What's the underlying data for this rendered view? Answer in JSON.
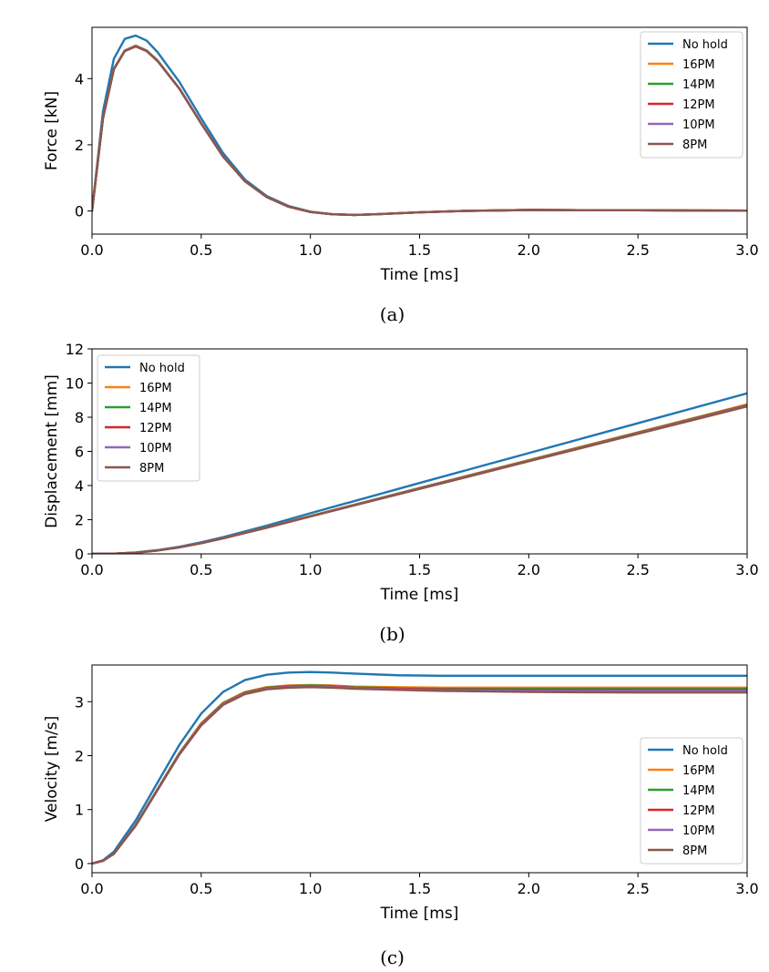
{
  "chart_data": [
    {
      "type": "line",
      "caption": "(a)",
      "xlabel": "Time [ms]",
      "ylabel": "Force [kN]",
      "xlim": [
        0,
        3.0
      ],
      "ylim": [
        -0.7,
        5.55
      ],
      "xticks": [
        "0.0",
        "0.5",
        "1.0",
        "1.5",
        "2.0",
        "2.5",
        "3.0"
      ],
      "yticks": [
        "0",
        "2",
        "4"
      ],
      "legend_position": "upper-right",
      "x": [
        0,
        0.05,
        0.1,
        0.15,
        0.2,
        0.25,
        0.3,
        0.4,
        0.5,
        0.6,
        0.7,
        0.8,
        0.9,
        1.0,
        1.1,
        1.2,
        1.3,
        1.5,
        1.7,
        2.0,
        2.5,
        3.0
      ],
      "series": [
        {
          "name": "No hold",
          "color": "#1f77b4",
          "values": [
            0,
            3.0,
            4.6,
            5.2,
            5.3,
            5.15,
            4.8,
            3.9,
            2.8,
            1.75,
            0.95,
            0.45,
            0.15,
            -0.02,
            -0.1,
            -0.12,
            -0.1,
            -0.04,
            0.0,
            0.03,
            0.02,
            0.01
          ]
        },
        {
          "name": "16PM",
          "color": "#ff7f0e",
          "values": [
            0,
            2.8,
            4.3,
            4.85,
            5.0,
            4.85,
            4.55,
            3.7,
            2.65,
            1.65,
            0.9,
            0.42,
            0.13,
            -0.03,
            -0.1,
            -0.12,
            -0.1,
            -0.04,
            0.0,
            0.03,
            0.02,
            0.01
          ]
        },
        {
          "name": "14PM",
          "color": "#2ca02c",
          "values": [
            0,
            2.8,
            4.3,
            4.85,
            4.99,
            4.85,
            4.55,
            3.7,
            2.65,
            1.65,
            0.9,
            0.42,
            0.13,
            -0.03,
            -0.1,
            -0.12,
            -0.1,
            -0.04,
            0.0,
            0.03,
            0.02,
            0.01
          ]
        },
        {
          "name": "12PM",
          "color": "#d62728",
          "values": [
            0,
            2.8,
            4.29,
            4.84,
            4.98,
            4.84,
            4.54,
            3.7,
            2.65,
            1.65,
            0.9,
            0.42,
            0.13,
            -0.03,
            -0.1,
            -0.12,
            -0.1,
            -0.04,
            0.0,
            0.03,
            0.02,
            0.01
          ]
        },
        {
          "name": "10PM",
          "color": "#9467bd",
          "values": [
            0,
            2.8,
            4.29,
            4.84,
            4.98,
            4.84,
            4.54,
            3.7,
            2.65,
            1.65,
            0.9,
            0.42,
            0.13,
            -0.03,
            -0.1,
            -0.12,
            -0.1,
            -0.04,
            0.0,
            0.03,
            0.02,
            0.01
          ]
        },
        {
          "name": "8PM",
          "color": "#8c564b",
          "values": [
            0,
            2.79,
            4.28,
            4.83,
            4.97,
            4.83,
            4.53,
            3.69,
            2.64,
            1.64,
            0.9,
            0.42,
            0.13,
            -0.03,
            -0.1,
            -0.12,
            -0.1,
            -0.04,
            0.0,
            0.03,
            0.02,
            0.01
          ]
        }
      ]
    },
    {
      "type": "line",
      "caption": "(b)",
      "xlabel": "Time [ms]",
      "ylabel": "Displacement [mm]",
      "xlim": [
        0,
        3.0
      ],
      "ylim": [
        0,
        12
      ],
      "xticks": [
        "0.0",
        "0.5",
        "1.0",
        "1.5",
        "2.0",
        "2.5",
        "3.0"
      ],
      "yticks": [
        "0",
        "2",
        "4",
        "6",
        "8",
        "10",
        "12"
      ],
      "legend_position": "upper-left",
      "x": [
        0,
        0.1,
        0.2,
        0.3,
        0.4,
        0.5,
        0.6,
        0.8,
        1.0,
        1.5,
        2.0,
        2.5,
        3.0
      ],
      "series": [
        {
          "name": "No hold",
          "color": "#1f77b4",
          "values": [
            0,
            0.01,
            0.08,
            0.22,
            0.42,
            0.68,
            0.98,
            1.65,
            2.38,
            4.15,
            5.9,
            7.65,
            9.4
          ]
        },
        {
          "name": "16PM",
          "color": "#ff7f0e",
          "values": [
            0,
            0.01,
            0.07,
            0.2,
            0.39,
            0.63,
            0.92,
            1.55,
            2.22,
            3.86,
            5.49,
            7.12,
            8.75
          ]
        },
        {
          "name": "14PM",
          "color": "#2ca02c",
          "values": [
            0,
            0.01,
            0.07,
            0.2,
            0.39,
            0.63,
            0.92,
            1.55,
            2.21,
            3.85,
            5.47,
            7.1,
            8.72
          ]
        },
        {
          "name": "12PM",
          "color": "#d62728",
          "values": [
            0,
            0.01,
            0.07,
            0.2,
            0.39,
            0.63,
            0.91,
            1.54,
            2.2,
            3.83,
            5.45,
            7.07,
            8.69
          ]
        },
        {
          "name": "10PM",
          "color": "#9467bd",
          "values": [
            0,
            0.01,
            0.07,
            0.2,
            0.39,
            0.63,
            0.91,
            1.54,
            2.2,
            3.82,
            5.44,
            7.05,
            8.66
          ]
        },
        {
          "name": "8PM",
          "color": "#8c564b",
          "values": [
            0,
            0.01,
            0.07,
            0.2,
            0.38,
            0.62,
            0.91,
            1.53,
            2.19,
            3.8,
            5.42,
            7.03,
            8.63
          ]
        }
      ]
    },
    {
      "type": "line",
      "caption": "(c)",
      "xlabel": "Time [ms]",
      "ylabel": "Velocity [m/s]",
      "xlim": [
        0,
        3.0
      ],
      "ylim": [
        -0.17,
        3.68
      ],
      "xticks": [
        "0.0",
        "0.5",
        "1.0",
        "1.5",
        "2.0",
        "2.5",
        "3.0"
      ],
      "yticks": [
        "0",
        "1",
        "2",
        "3"
      ],
      "legend_position": "lower-right",
      "x": [
        0,
        0.05,
        0.1,
        0.2,
        0.3,
        0.4,
        0.5,
        0.6,
        0.7,
        0.8,
        0.9,
        1.0,
        1.1,
        1.2,
        1.4,
        1.6,
        2.0,
        2.5,
        3.0
      ],
      "series": [
        {
          "name": "No hold",
          "color": "#1f77b4",
          "values": [
            0,
            0.06,
            0.22,
            0.8,
            1.5,
            2.2,
            2.78,
            3.18,
            3.4,
            3.5,
            3.54,
            3.55,
            3.54,
            3.52,
            3.49,
            3.48,
            3.48,
            3.48,
            3.48
          ]
        },
        {
          "name": "16PM",
          "color": "#ff7f0e",
          "values": [
            0,
            0.05,
            0.18,
            0.72,
            1.38,
            2.05,
            2.6,
            2.98,
            3.18,
            3.27,
            3.3,
            3.31,
            3.3,
            3.28,
            3.27,
            3.26,
            3.26,
            3.26,
            3.26
          ]
        },
        {
          "name": "14PM",
          "color": "#2ca02c",
          "values": [
            0,
            0.05,
            0.18,
            0.72,
            1.38,
            2.04,
            2.59,
            2.97,
            3.17,
            3.26,
            3.29,
            3.3,
            3.29,
            3.27,
            3.25,
            3.24,
            3.24,
            3.24,
            3.24
          ]
        },
        {
          "name": "12PM",
          "color": "#d62728",
          "values": [
            0,
            0.05,
            0.18,
            0.71,
            1.37,
            2.03,
            2.58,
            2.96,
            3.16,
            3.25,
            3.28,
            3.29,
            3.28,
            3.26,
            3.24,
            3.23,
            3.22,
            3.22,
            3.22
          ]
        },
        {
          "name": "10PM",
          "color": "#9467bd",
          "values": [
            0,
            0.05,
            0.18,
            0.71,
            1.37,
            2.03,
            2.57,
            2.95,
            3.15,
            3.24,
            3.27,
            3.28,
            3.27,
            3.25,
            3.23,
            3.21,
            3.2,
            3.2,
            3.2
          ]
        },
        {
          "name": "8PM",
          "color": "#8c564b",
          "values": [
            0,
            0.05,
            0.18,
            0.7,
            1.36,
            2.02,
            2.56,
            2.94,
            3.14,
            3.23,
            3.26,
            3.27,
            3.26,
            3.24,
            3.22,
            3.2,
            3.18,
            3.17,
            3.17
          ]
        }
      ]
    }
  ]
}
